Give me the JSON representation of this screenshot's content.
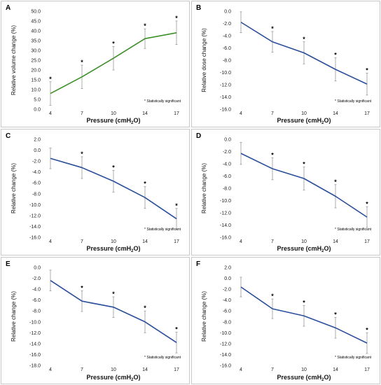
{
  "figure": {
    "xlabel": "Pressure (cmH",
    "xlabel_sub": "2",
    "xlabel_end": "O)",
    "note": "* Statistically significant",
    "star": "*"
  },
  "chart_data": [
    {
      "panel": "A",
      "type": "line",
      "color": "#3d8f2a",
      "categories": [
        "4",
        "7",
        "10",
        "14",
        "17"
      ],
      "values": [
        8,
        16.5,
        26,
        36,
        39
      ],
      "error": [
        6,
        6,
        6,
        5,
        6
      ],
      "significant": [
        true,
        true,
        true,
        true,
        true
      ],
      "ylabel": "Relative volume change (%)",
      "ylim": [
        0,
        50
      ],
      "yticks": [
        0,
        5,
        10,
        15,
        20,
        25,
        30,
        35,
        40,
        45,
        50
      ],
      "ytick_labels": [
        "0.0",
        "5.0",
        "10.0",
        "15.0",
        "20.0",
        "25.0",
        "30.0",
        "35.0",
        "40.0",
        "45.0",
        "50.0"
      ],
      "note_pos": "bottom-right"
    },
    {
      "panel": "B",
      "type": "line",
      "color": "#2a4f9a",
      "categories": [
        "4",
        "7",
        "10",
        "14",
        "17"
      ],
      "values": [
        -1.8,
        -5.0,
        -6.8,
        -9.5,
        -11.9
      ],
      "error": [
        1.7,
        1.7,
        1.8,
        1.9,
        1.8
      ],
      "significant": [
        false,
        true,
        true,
        true,
        true
      ],
      "ylabel": "Relative dose change (%)",
      "ylim": [
        -16,
        0
      ],
      "yticks": [
        0,
        -2,
        -4,
        -6,
        -8,
        -10,
        -12,
        -14,
        -16
      ],
      "ytick_labels": [
        "0.0",
        "-2.0",
        "-4.0",
        "-6.0",
        "-8.0",
        "-10.0",
        "-12.0",
        "-14.0",
        "-16.0"
      ],
      "note_pos": "bottom-right"
    },
    {
      "panel": "C",
      "type": "line",
      "color": "#2a4f9a",
      "categories": [
        "4",
        "7",
        "10",
        "14",
        "17"
      ],
      "values": [
        -1.5,
        -3.2,
        -5.7,
        -8.7,
        -12.6
      ],
      "error": [
        1.9,
        2.0,
        2.0,
        2.0,
        1.9
      ],
      "significant": [
        false,
        true,
        true,
        true,
        true
      ],
      "ylabel": "Relative change (%)",
      "ylim": [
        -16,
        2
      ],
      "yticks": [
        2,
        0,
        -2,
        -4,
        -6,
        -8,
        -10,
        -12,
        -14,
        -16
      ],
      "ytick_labels": [
        "2.0",
        "0.0",
        "-2.0",
        "-4.0",
        "-6.0",
        "-8.0",
        "-10.0",
        "-12.0",
        "-14.0",
        "-16.0"
      ],
      "note_pos": "bottom-right"
    },
    {
      "panel": "D",
      "type": "line",
      "color": "#2a4f9a",
      "categories": [
        "4",
        "7",
        "10",
        "14",
        "17"
      ],
      "values": [
        -2.3,
        -4.8,
        -6.4,
        -9.3,
        -12.7
      ],
      "error": [
        1.8,
        1.8,
        1.9,
        1.9,
        1.7
      ],
      "significant": [
        false,
        true,
        true,
        true,
        true
      ],
      "ylabel": "Relative change (%)",
      "ylim": [
        -16,
        0
      ],
      "yticks": [
        0,
        -2,
        -4,
        -6,
        -8,
        -10,
        -12,
        -14,
        -16
      ],
      "ytick_labels": [
        "0.0",
        "-2.0",
        "-4.0",
        "-6.0",
        "-8.0",
        "-10.0",
        "-12.0",
        "-14.0",
        "-16.0"
      ],
      "note_pos": "bottom-right"
    },
    {
      "panel": "E",
      "type": "line",
      "color": "#2a4f9a",
      "categories": [
        "4",
        "7",
        "10",
        "14",
        "17"
      ],
      "values": [
        -2.4,
        -6.2,
        -7.3,
        -10.0,
        -13.8
      ],
      "error": [
        1.9,
        1.9,
        1.9,
        2.0,
        1.9
      ],
      "significant": [
        false,
        true,
        true,
        true,
        true
      ],
      "ylabel": "Relative change (%)",
      "ylim": [
        -18,
        0
      ],
      "yticks": [
        0,
        -2,
        -4,
        -6,
        -8,
        -10,
        -12,
        -14,
        -16,
        -18
      ],
      "ytick_labels": [
        "0.0",
        "-2.0",
        "-4.0",
        "-6.0",
        "-8.0",
        "-10.0",
        "-12.0",
        "-14.0",
        "-16.0",
        "-18.0"
      ],
      "note_pos": "bottom-right"
    },
    {
      "panel": "F",
      "type": "line",
      "color": "#2a4f9a",
      "categories": [
        "4",
        "7",
        "10",
        "14",
        "17"
      ],
      "values": [
        -1.6,
        -5.6,
        -6.9,
        -9.1,
        -11.9
      ],
      "error": [
        1.8,
        1.8,
        1.9,
        1.9,
        1.9
      ],
      "significant": [
        false,
        true,
        true,
        true,
        true
      ],
      "ylabel": "Relative change (%)",
      "ylim": [
        -16,
        2
      ],
      "yticks": [
        2,
        0,
        -2,
        -4,
        -6,
        -8,
        -10,
        -12,
        -14,
        -16
      ],
      "ytick_labels": [
        "2.0",
        "0.0",
        "-2.0",
        "-4.0",
        "-6.0",
        "-8.0",
        "-10.0",
        "-12.0",
        "-14.0",
        "-16.0"
      ],
      "note_pos": "bottom-right"
    }
  ]
}
